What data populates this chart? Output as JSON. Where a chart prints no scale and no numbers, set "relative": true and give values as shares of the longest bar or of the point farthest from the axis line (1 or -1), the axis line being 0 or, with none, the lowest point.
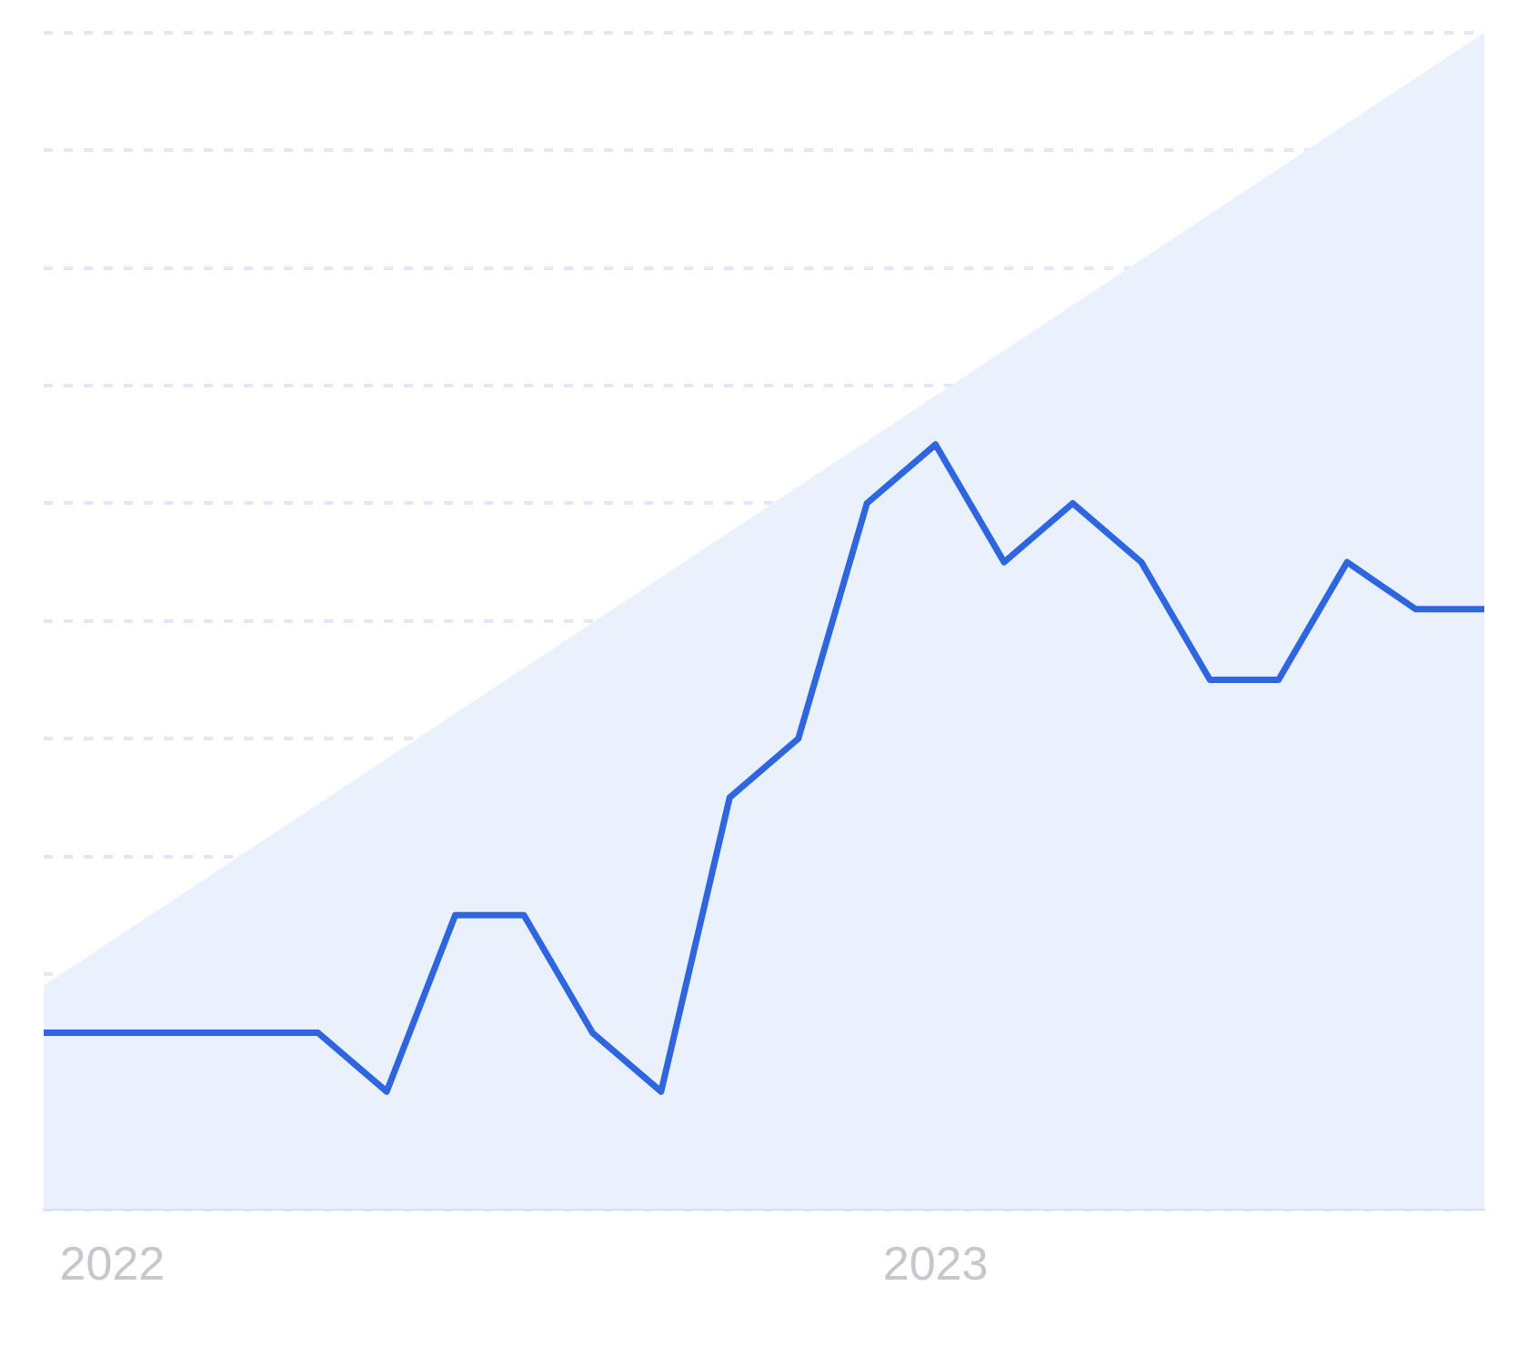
{
  "chart_data": {
    "type": "line",
    "relative": true,
    "categories": [
      null,
      "2022",
      null,
      null,
      null,
      null,
      null,
      null,
      null,
      null,
      null,
      null,
      null,
      "2023",
      null,
      null,
      null,
      null,
      null,
      null,
      null,
      null
    ],
    "series": [
      {
        "type": "area",
        "color": "#e8f1fc",
        "values": [
          0.19,
          null,
          null,
          null,
          null,
          null,
          null,
          null,
          null,
          null,
          null,
          null,
          null,
          null,
          null,
          null,
          null,
          null,
          null,
          null,
          null,
          1.0
        ]
      },
      {
        "color": "#2f66e0",
        "values": [
          0.15,
          0.15,
          0.15,
          0.15,
          0.15,
          0.1,
          0.25,
          0.25,
          0.15,
          0.1,
          0.35,
          0.4,
          0.6,
          0.65,
          0.55,
          0.6,
          0.55,
          0.45,
          0.45,
          0.55,
          0.51,
          0.51
        ]
      }
    ],
    "grid": "y",
    "legend": false,
    "marker": "none",
    "line_style": "solid"
  }
}
